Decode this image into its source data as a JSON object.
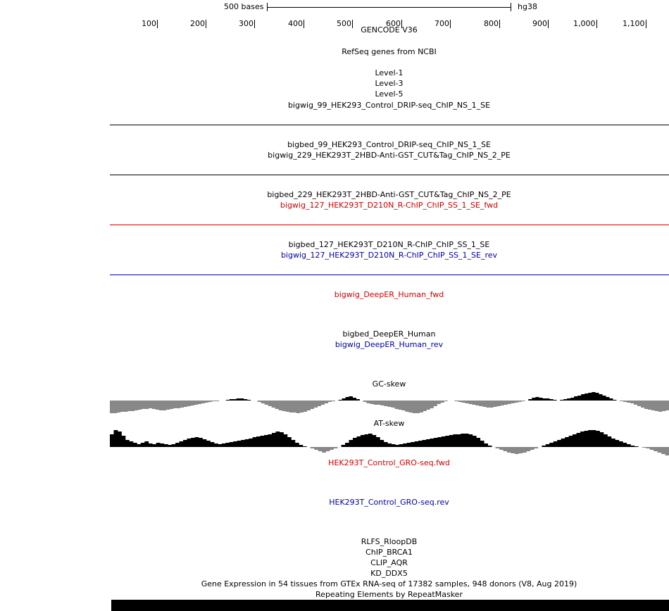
{
  "ruler": {
    "scale_label": "500 bases",
    "assembly": "hg38",
    "ticks": [
      "100",
      "200",
      "300",
      "400",
      "500",
      "600",
      "700",
      "800",
      "900",
      "1,000",
      "1,100"
    ]
  },
  "tracks": {
    "gencode": "GENCODE V36",
    "refseq": "RefSeq genes from NCBI",
    "level1": "Level-1",
    "level3": "Level-3",
    "level5": "Level-5",
    "drip_bw": "bigwig_99_HEK293_Control_DRIP-seq_ChIP_NS_1_SE",
    "drip_bb": "bigbed_99_HEK293_Control_DRIP-seq_ChIP_NS_1_SE",
    "cut_bw": "bigwig_229_HEK293T_2HBD-Anti-GST_CUT&Tag_ChIP_NS_2_PE",
    "cut_bb": "bigbed_229_HEK293T_2HBD-Anti-GST_CUT&Tag_ChIP_NS_2_PE",
    "rchip_fwd": "bigwig_127_HEK293T_D210N_R-ChIP_ChIP_SS_1_SE_fwd",
    "rchip_bb": "bigbed_127_HEK293T_D210N_R-ChIP_ChIP_SS_1_SE",
    "rchip_rev": "bigwig_127_HEK293T_D210N_R-ChIP_ChIP_SS_1_SE_rev",
    "deeper_fwd": "bigwig_DeepER_Human_fwd",
    "deeper_bb": "bigbed_DeepER_Human",
    "deeper_rev": "bigwig_DeepER_Human_rev",
    "gc_skew": "GC-skew",
    "at_skew": "AT-skew",
    "gro_fwd": "HEK293T_Control_GRO-seq.fwd",
    "gro_rev": "HEK293T_Control_GRO-seq.rev",
    "rlfs": "RLFS_RloopDB",
    "brca1": "ChIP_BRCA1",
    "clip": "CLIP_AQR",
    "kd": "KD_DDX5",
    "gtex": "Gene Expression in 54 tissues from GTEx RNA-seq of 17382 samples, 948 donors (V8, Aug 2019)",
    "rmsk": "Repeating Elements by RepeatMasker"
  },
  "colors": {
    "fwd": "#cc0000",
    "rev": "#0000a0",
    "neutral": "#000000",
    "skew_positive": "#000000",
    "skew_negative": "#888888"
  },
  "skew_data": {
    "gc": [
      -18,
      -18,
      -17,
      -16,
      -16,
      -15,
      -15,
      -14,
      -13,
      -12,
      -12,
      -11,
      -12,
      -13,
      -14,
      -14,
      -13,
      -12,
      -11,
      -11,
      -10,
      -9,
      -8,
      -7,
      -6,
      -5,
      -4,
      -3,
      -2,
      -1,
      -1,
      0,
      0,
      1,
      2,
      2,
      3,
      3,
      2,
      1,
      0,
      0,
      -2,
      -4,
      -6,
      -8,
      -10,
      -12,
      -14,
      -15,
      -16,
      -17,
      -17,
      -18,
      -17,
      -16,
      -14,
      -12,
      -10,
      -8,
      -6,
      -4,
      -2,
      -1,
      0,
      1,
      3,
      5,
      6,
      4,
      2,
      0,
      -2,
      -4,
      -5,
      -6,
      -6,
      -7,
      -8,
      -9,
      -10,
      -12,
      -13,
      -14,
      -16,
      -17,
      -18,
      -18,
      -17,
      -15,
      -13,
      -11,
      -8,
      -5,
      -3,
      -1,
      0,
      0,
      -1,
      -2,
      -3,
      -4,
      -5,
      -6,
      -7,
      -8,
      -9,
      -10,
      -10,
      -9,
      -8,
      -7,
      -6,
      -5,
      -4,
      -3,
      -2,
      -1,
      0,
      2,
      4,
      5,
      4,
      3,
      3,
      2,
      1,
      0,
      1,
      2,
      3,
      4,
      6,
      7,
      9,
      10,
      11,
      12,
      11,
      9,
      7,
      5,
      3,
      1,
      0,
      -1,
      -2,
      -3,
      -4,
      -6,
      -8,
      -10,
      -12,
      -13,
      -14,
      -15,
      -16,
      -15,
      -14
    ],
    "at": [
      18,
      24,
      22,
      16,
      10,
      8,
      6,
      4,
      6,
      8,
      5,
      4,
      6,
      5,
      4,
      3,
      4,
      6,
      8,
      10,
      12,
      13,
      14,
      13,
      11,
      9,
      7,
      5,
      4,
      5,
      6,
      7,
      8,
      9,
      10,
      11,
      12,
      14,
      15,
      16,
      17,
      18,
      20,
      22,
      21,
      18,
      14,
      10,
      6,
      3,
      1,
      0,
      -2,
      -4,
      -6,
      -8,
      -6,
      -4,
      -2,
      0,
      3,
      6,
      10,
      13,
      15,
      17,
      18,
      19,
      17,
      14,
      10,
      7,
      5,
      4,
      3,
      4,
      5,
      6,
      7,
      8,
      9,
      10,
      11,
      12,
      13,
      14,
      15,
      16,
      17,
      18,
      18,
      19,
      19,
      18,
      16,
      13,
      9,
      5,
      2,
      0,
      -2,
      -4,
      -6,
      -8,
      -9,
      -10,
      -9,
      -8,
      -6,
      -4,
      -2,
      0,
      2,
      4,
      6,
      8,
      10,
      12,
      14,
      16,
      18,
      20,
      22,
      23,
      24,
      24,
      23,
      21,
      18,
      15,
      12,
      10,
      8,
      6,
      4,
      2,
      1,
      0,
      -1,
      -2,
      -4,
      -6,
      -8,
      -10,
      -12
    ]
  }
}
